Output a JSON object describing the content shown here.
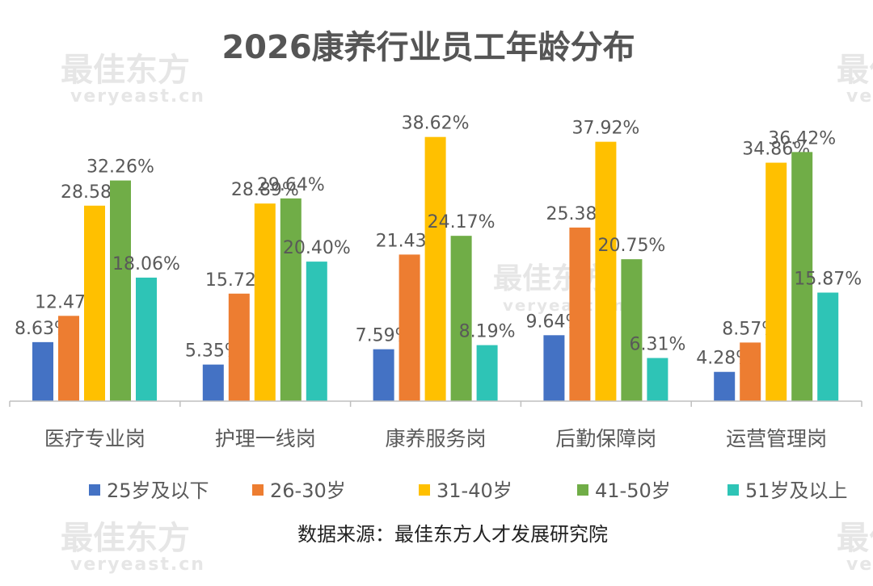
{
  "watermark": {
    "brand": "最佳东方",
    "domain": "veryeast.cn"
  },
  "source_note": "数据来源：最佳东方人才发展研究院",
  "chart_data": {
    "type": "bar",
    "title": "2026康养行业员工年龄分布",
    "xlabel": "",
    "ylabel": "",
    "ylim": [
      0,
      40
    ],
    "grid": false,
    "legend_position": "bottom",
    "categories": [
      "医疗专业岗",
      "护理一线岗",
      "康养服务岗",
      "后勤保障岗",
      "运营管理岗"
    ],
    "series": [
      {
        "name": "25岁及以下",
        "color": "#4472C4",
        "values": [
          8.63,
          5.35,
          7.59,
          9.64,
          4.28
        ],
        "labels": [
          "8.63%",
          "5.35%",
          "7.59%",
          "9.64%",
          "4.28%"
        ]
      },
      {
        "name": "26-30岁",
        "color": "#ED7D31",
        "values": [
          12.47,
          15.72,
          21.43,
          25.38,
          8.57
        ],
        "labels": [
          "12.47%",
          "15.72%",
          "21.43%",
          "25.38%",
          "8.57%"
        ]
      },
      {
        "name": "31-40岁",
        "color": "#FFC000",
        "values": [
          28.58,
          28.89,
          38.62,
          37.92,
          34.86
        ],
        "labels": [
          "28.58%",
          "28.89%",
          "38.62%",
          "37.92%",
          "34.86%"
        ]
      },
      {
        "name": "41-50岁",
        "color": "#70AD47",
        "values": [
          32.26,
          29.64,
          24.17,
          20.75,
          36.42
        ],
        "labels": [
          "32.26%",
          "29.64%",
          "24.17%",
          "20.75%",
          "36.42%"
        ]
      },
      {
        "name": "51岁及以上",
        "color": "#2EC4B6",
        "values": [
          18.06,
          20.4,
          8.19,
          6.31,
          15.87
        ],
        "labels": [
          "18.06%",
          "20.40%",
          "8.19%",
          "6.31%",
          "15.87%"
        ]
      }
    ]
  }
}
